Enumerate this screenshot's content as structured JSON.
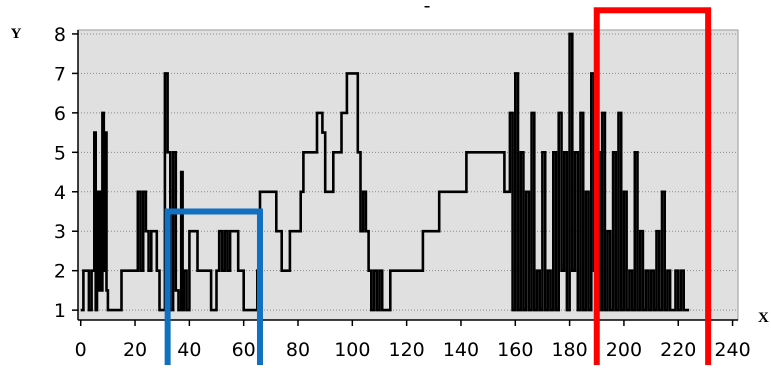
{
  "chart_data": {
    "type": "line",
    "title": "-",
    "xlabel": "X",
    "ylabel": "Y",
    "xlim": [
      -1,
      242
    ],
    "ylim": [
      0.75,
      8.1
    ],
    "x_ticks": [
      0,
      20,
      40,
      60,
      80,
      100,
      120,
      140,
      160,
      180,
      200,
      220,
      240
    ],
    "y_ticks": [
      1,
      2,
      3,
      4,
      5,
      6,
      7,
      8
    ],
    "grid": true,
    "step": true,
    "plot_background": "#e0e0e0",
    "series": [
      {
        "color": "#000000",
        "points": [
          [
            0,
            1
          ],
          [
            1,
            2
          ],
          [
            2,
            2
          ],
          [
            3,
            1
          ],
          [
            4,
            2
          ],
          [
            5,
            5.5
          ],
          [
            5.5,
            1
          ],
          [
            6,
            4
          ],
          [
            6.5,
            1.5
          ],
          [
            7,
            4
          ],
          [
            7.5,
            1.5
          ],
          [
            8,
            6
          ],
          [
            8.5,
            2
          ],
          [
            9,
            5.5
          ],
          [
            9.5,
            1.5
          ],
          [
            10,
            1
          ],
          [
            14,
            1
          ],
          [
            15,
            2
          ],
          [
            20,
            2
          ],
          [
            21,
            4
          ],
          [
            22,
            2
          ],
          [
            23,
            4
          ],
          [
            24,
            3
          ],
          [
            25,
            2
          ],
          [
            26,
            3
          ],
          [
            27,
            3
          ],
          [
            28,
            2
          ],
          [
            29,
            1
          ],
          [
            31,
            7
          ],
          [
            32,
            5
          ],
          [
            33,
            1
          ],
          [
            34,
            5
          ],
          [
            35,
            1.5
          ],
          [
            36,
            1
          ],
          [
            37,
            4.5
          ],
          [
            37.5,
            1
          ],
          [
            38,
            2
          ],
          [
            39,
            1
          ],
          [
            40,
            3
          ],
          [
            41,
            3
          ],
          [
            42,
            3
          ],
          [
            43,
            2
          ],
          [
            47,
            2
          ],
          [
            48,
            1
          ],
          [
            50,
            2
          ],
          [
            51,
            3
          ],
          [
            52,
            2
          ],
          [
            53,
            3
          ],
          [
            54,
            2
          ],
          [
            55,
            3
          ],
          [
            57,
            3
          ],
          [
            58,
            2
          ],
          [
            60,
            1
          ],
          [
            64,
            1
          ],
          [
            65,
            2
          ],
          [
            66,
            4
          ],
          [
            71,
            4
          ],
          [
            72,
            3
          ],
          [
            73,
            3
          ],
          [
            74,
            2
          ],
          [
            76,
            2
          ],
          [
            77,
            3
          ],
          [
            80,
            3
          ],
          [
            81,
            4
          ],
          [
            82,
            5
          ],
          [
            86,
            5
          ],
          [
            87,
            6
          ],
          [
            88,
            6
          ],
          [
            89,
            5.5
          ],
          [
            90,
            4
          ],
          [
            92,
            4
          ],
          [
            93,
            5
          ],
          [
            96,
            6
          ],
          [
            98,
            7
          ],
          [
            101,
            7
          ],
          [
            102,
            5
          ],
          [
            103,
            3
          ],
          [
            104,
            4
          ],
          [
            105,
            3
          ],
          [
            106,
            2
          ],
          [
            107,
            1
          ],
          [
            108,
            2
          ],
          [
            109,
            1
          ],
          [
            110,
            2
          ],
          [
            111,
            1
          ],
          [
            113,
            1
          ],
          [
            114,
            2
          ],
          [
            125,
            2
          ],
          [
            126,
            3
          ],
          [
            131,
            3
          ],
          [
            132,
            4
          ],
          [
            141,
            4
          ],
          [
            142,
            5
          ],
          [
            155,
            5
          ],
          [
            156,
            4
          ],
          [
            157,
            4
          ],
          [
            158,
            6
          ],
          [
            159,
            1
          ],
          [
            160,
            7
          ],
          [
            161,
            1
          ],
          [
            162,
            5
          ],
          [
            163,
            1
          ],
          [
            164,
            4
          ],
          [
            165,
            1
          ],
          [
            166,
            6
          ],
          [
            167,
            1
          ],
          [
            168,
            2
          ],
          [
            169,
            1
          ],
          [
            170,
            5
          ],
          [
            171,
            1
          ],
          [
            172,
            2
          ],
          [
            173,
            1
          ],
          [
            174,
            5
          ],
          [
            175,
            1
          ],
          [
            176,
            6
          ],
          [
            177,
            2
          ],
          [
            178,
            5
          ],
          [
            179,
            1
          ],
          [
            180,
            8
          ],
          [
            181,
            2
          ],
          [
            182,
            5
          ],
          [
            183,
            1
          ],
          [
            184,
            6
          ],
          [
            185,
            1
          ],
          [
            186,
            4
          ],
          [
            187,
            1
          ],
          [
            188,
            7
          ],
          [
            189,
            2
          ],
          [
            190,
            5
          ],
          [
            191,
            1
          ],
          [
            192,
            6
          ],
          [
            193,
            1
          ],
          [
            194,
            3
          ],
          [
            195,
            1
          ],
          [
            196,
            5
          ],
          [
            197,
            1
          ],
          [
            198,
            6
          ],
          [
            199,
            1
          ],
          [
            200,
            4
          ],
          [
            201,
            1
          ],
          [
            202,
            2
          ],
          [
            203,
            1
          ],
          [
            204,
            5
          ],
          [
            205,
            1
          ],
          [
            206,
            3
          ],
          [
            207,
            1
          ],
          [
            208,
            2
          ],
          [
            209,
            1
          ],
          [
            210,
            2
          ],
          [
            211,
            1
          ],
          [
            212,
            3
          ],
          [
            213,
            1
          ],
          [
            214,
            4
          ],
          [
            215,
            1
          ],
          [
            216,
            2
          ],
          [
            217,
            1
          ],
          [
            218,
            1
          ],
          [
            219,
            2
          ],
          [
            220,
            1
          ],
          [
            221,
            2
          ],
          [
            222,
            1
          ],
          [
            224,
            1
          ]
        ]
      }
    ],
    "annotations": [
      {
        "kind": "rectangle",
        "color": "#1170c0",
        "x_range": [
          32,
          66
        ],
        "y_range": [
          -0.5,
          3.5
        ]
      },
      {
        "kind": "rectangle",
        "color": "#ff0000",
        "x_range": [
          190,
          231
        ],
        "y_range": [
          -0.5,
          8.6
        ]
      }
    ]
  }
}
